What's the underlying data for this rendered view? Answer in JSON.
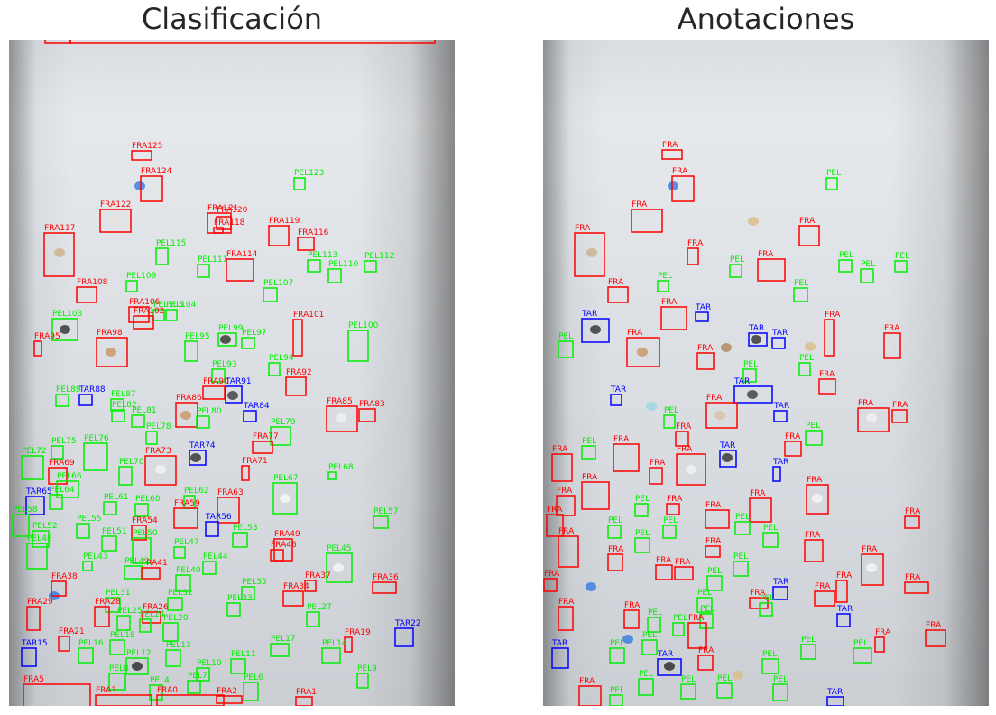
{
  "left_title": "Clasificación",
  "right_title": "Anotaciones",
  "colors": {
    "FRA": "#ff0000",
    "PEL": "#00ee00",
    "TAR": "#0000ff"
  },
  "left_labels": [
    "FRA125",
    "FRA124",
    "PEL123",
    "FRA122",
    "FRA121",
    "FRA120",
    "FRA118",
    "FRA119",
    "FRA116",
    "FRA117",
    "PEL115",
    "FRA114",
    "PEL113",
    "PEL112",
    "PEL111",
    "PEL110",
    "PEL109",
    "FRA108",
    "PEL107",
    "FRA106",
    "PEL105",
    "PEL104",
    "PEL103",
    "FRA102",
    "FRA101",
    "PEL100",
    "PEL99",
    "FRA98",
    "PEL97",
    "FRA95",
    "PEL95",
    "PEL94",
    "PEL93",
    "FRA92",
    "TAR91",
    "FRA90",
    "PEL89",
    "TAR88",
    "PEL87",
    "FRA86",
    "FRA85",
    "TAR84",
    "FRA83",
    "PEL82",
    "PEL81",
    "PEL80",
    "PEL79",
    "PEL78",
    "FRA77",
    "PEL76",
    "PEL75",
    "TAR74",
    "FRA73",
    "PEL72",
    "FRA71",
    "PEL70",
    "FRA69",
    "PEL68",
    "PEL67",
    "PEL66",
    "TAR65",
    "PEL64",
    "FRA63",
    "PEL62",
    "PEL61",
    "PEL60",
    "FRA59",
    "PEL58",
    "PEL57",
    "TAR56",
    "PEL55",
    "FRA54",
    "PEL53",
    "PEL52",
    "PEL51",
    "PEL50",
    "FRA49",
    "PEL48",
    "PEL47",
    "FRA46",
    "PEL45",
    "PEL44",
    "PEL43",
    "PEL42",
    "FRA41",
    "PEL40",
    "FRA38",
    "FRA37",
    "FRA36",
    "PEL35",
    "FRA34",
    "PEL33",
    "PEL32",
    "PEL31",
    "FRA29",
    "FRA28",
    "PEL27",
    "FRA26",
    "PEL25",
    "PEL24",
    "TAR22",
    "FRA21",
    "PEL20",
    "FRA19",
    "PEL18",
    "PEL17",
    "PEL16",
    "TAR15",
    "PEL14",
    "PEL13",
    "PEL12",
    "PEL11",
    "PEL10",
    "PEL9",
    "PEL8",
    "PEL7",
    "PEL6",
    "FRA5",
    "PEL4",
    "FRA3",
    "FRA2",
    "FRA1",
    "FRA0"
  ],
  "right_labels": {
    "FRA": "FRA",
    "PEL": "PEL",
    "TAR": "TAR"
  }
}
